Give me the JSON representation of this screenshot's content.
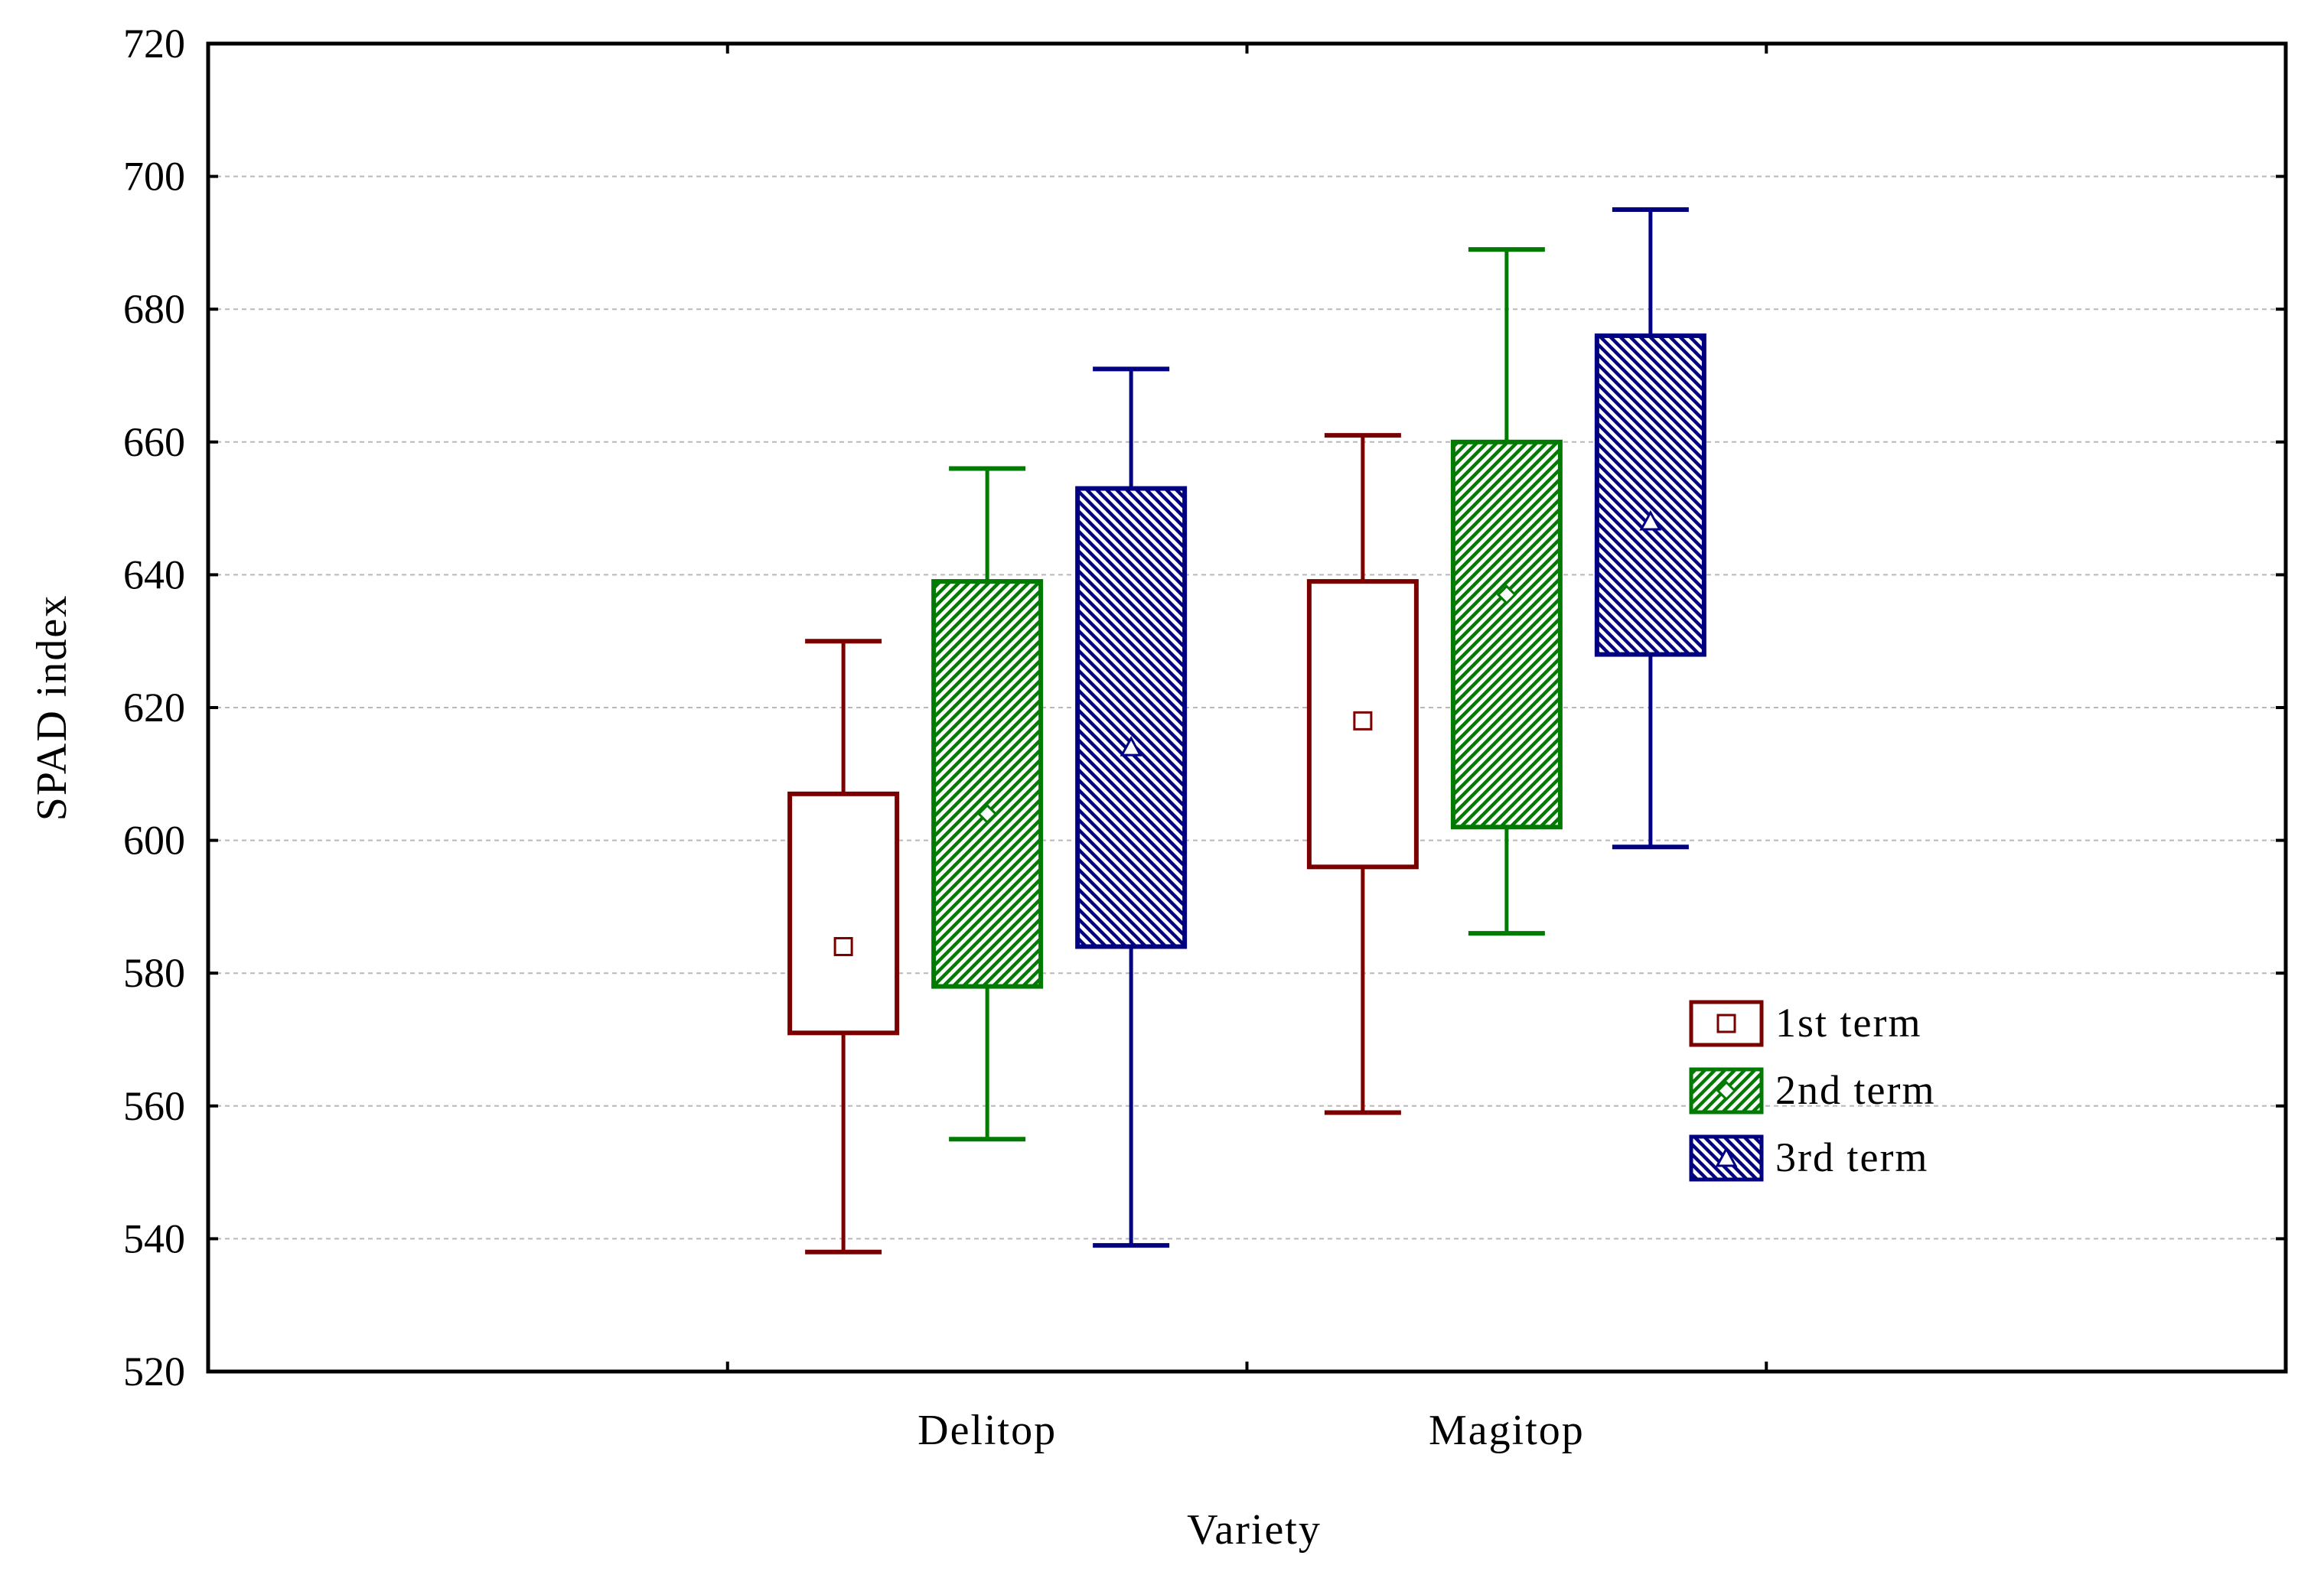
{
  "chart_data": {
    "type": "boxplot",
    "xlabel": "Variety",
    "ylabel": "SPAD index",
    "ylim": [
      520,
      720
    ],
    "yticks": [
      "520",
      "540",
      "560",
      "580",
      "600",
      "620",
      "640",
      "660",
      "680",
      "700",
      "720"
    ],
    "categories": [
      "Delitop",
      "Magitop"
    ],
    "grid": true,
    "legend_position": "right-middle",
    "series": [
      {
        "name": "1st term",
        "color": "#7a0000",
        "pattern": "none",
        "marker": "square",
        "boxes": [
          {
            "category": "Delitop",
            "min": 538,
            "q1": 571,
            "median": 584,
            "q3": 607,
            "max": 630
          },
          {
            "category": "Magitop",
            "min": 559,
            "q1": 596,
            "median": 618,
            "q3": 639,
            "max": 661
          }
        ]
      },
      {
        "name": "2nd term",
        "color": "#007a00",
        "pattern": "diagonal-up",
        "marker": "diamond",
        "boxes": [
          {
            "category": "Delitop",
            "min": 555,
            "q1": 578,
            "median": 604,
            "q3": 639,
            "max": 656
          },
          {
            "category": "Magitop",
            "min": 586,
            "q1": 602,
            "median": 637,
            "q3": 660,
            "max": 689
          }
        ]
      },
      {
        "name": "3rd term",
        "color": "#000080",
        "pattern": "diagonal-down",
        "marker": "triangle",
        "boxes": [
          {
            "category": "Delitop",
            "min": 539,
            "q1": 584,
            "median": 614,
            "q3": 653,
            "max": 671
          },
          {
            "category": "Magitop",
            "min": 599,
            "q1": 628,
            "median": 648,
            "q3": 676,
            "max": 695
          }
        ]
      }
    ]
  }
}
